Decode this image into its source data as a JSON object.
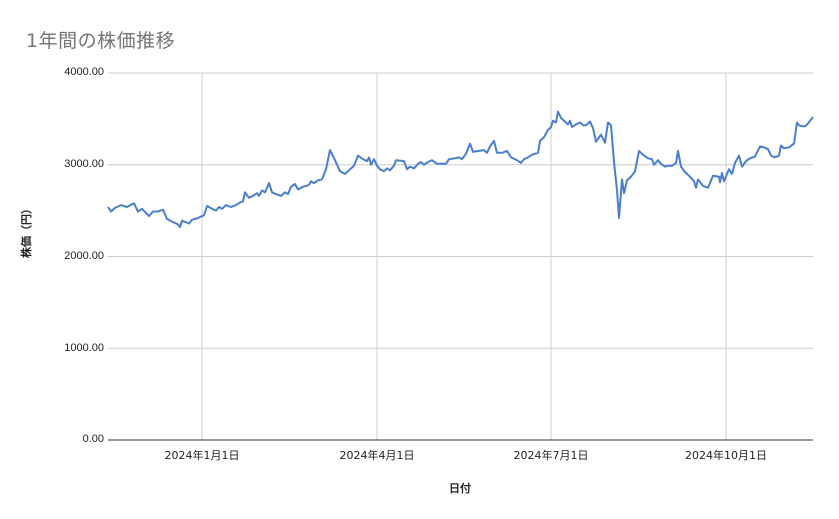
{
  "chart_data": {
    "type": "line",
    "title": "1年間の株価推移",
    "xlabel": "日付",
    "ylabel": "株価（円）",
    "ylim": [
      0,
      4000
    ],
    "y_ticks": [
      "4000.00",
      "3000.00",
      "2000.00",
      "1000.00",
      "0.00"
    ],
    "x_ticks": [
      "2024年1月1日",
      "2024年4月1日",
      "2024年7月1日",
      "2024年10月1日"
    ],
    "grid": true,
    "legend": "none",
    "line_color": "#4a7fd0",
    "series": [
      {
        "name": "株価",
        "x_range": [
          "2023年11月",
          "2024年11月"
        ],
        "points": [
          [
            108,
            2540
          ],
          [
            111,
            2490
          ],
          [
            115,
            2530
          ],
          [
            121,
            2560
          ],
          [
            127,
            2540
          ],
          [
            134,
            2580
          ],
          [
            138,
            2490
          ],
          [
            142,
            2520
          ],
          [
            149,
            2440
          ],
          [
            153,
            2490
          ],
          [
            158,
            2490
          ],
          [
            163,
            2510
          ],
          [
            165,
            2460
          ],
          [
            167,
            2410
          ],
          [
            172,
            2380
          ],
          [
            178,
            2350
          ],
          [
            180,
            2320
          ],
          [
            182,
            2390
          ],
          [
            189,
            2360
          ],
          [
            192,
            2400
          ],
          [
            198,
            2420
          ],
          [
            204,
            2450
          ],
          [
            207,
            2550
          ],
          [
            212,
            2520
          ],
          [
            216,
            2500
          ],
          [
            219,
            2540
          ],
          [
            222,
            2520
          ],
          [
            226,
            2560
          ],
          [
            231,
            2540
          ],
          [
            236,
            2560
          ],
          [
            240,
            2590
          ],
          [
            243,
            2600
          ],
          [
            245,
            2700
          ],
          [
            249,
            2640
          ],
          [
            253,
            2660
          ],
          [
            257,
            2690
          ],
          [
            259,
            2660
          ],
          [
            262,
            2720
          ],
          [
            265,
            2700
          ],
          [
            269,
            2800
          ],
          [
            272,
            2700
          ],
          [
            276,
            2680
          ],
          [
            281,
            2660
          ],
          [
            285,
            2700
          ],
          [
            288,
            2680
          ],
          [
            291,
            2760
          ],
          [
            295,
            2790
          ],
          [
            298,
            2730
          ],
          [
            303,
            2760
          ],
          [
            309,
            2780
          ],
          [
            311,
            2820
          ],
          [
            314,
            2800
          ],
          [
            318,
            2830
          ],
          [
            322,
            2840
          ],
          [
            326,
            2950
          ],
          [
            330,
            3160
          ],
          [
            335,
            3050
          ],
          [
            340,
            2930
          ],
          [
            345,
            2900
          ],
          [
            350,
            2950
          ],
          [
            354,
            2990
          ],
          [
            358,
            3100
          ],
          [
            363,
            3060
          ],
          [
            367,
            3040
          ],
          [
            369,
            3080
          ],
          [
            371,
            3000
          ],
          [
            374,
            3060
          ],
          [
            377,
            2990
          ],
          [
            380,
            2950
          ],
          [
            384,
            2930
          ],
          [
            387,
            2960
          ],
          [
            390,
            2940
          ],
          [
            394,
            2990
          ],
          [
            396,
            3050
          ],
          [
            404,
            3040
          ],
          [
            407,
            2950
          ],
          [
            410,
            2980
          ],
          [
            414,
            2960
          ],
          [
            418,
            3010
          ],
          [
            421,
            3030
          ],
          [
            424,
            3000
          ],
          [
            428,
            3030
          ],
          [
            432,
            3050
          ],
          [
            437,
            3010
          ],
          [
            446,
            3010
          ],
          [
            449,
            3060
          ],
          [
            455,
            3070
          ],
          [
            459,
            3080
          ],
          [
            462,
            3060
          ],
          [
            466,
            3120
          ],
          [
            470,
            3230
          ],
          [
            473,
            3140
          ],
          [
            478,
            3150
          ],
          [
            484,
            3160
          ],
          [
            487,
            3130
          ],
          [
            490,
            3200
          ],
          [
            494,
            3260
          ],
          [
            497,
            3130
          ],
          [
            502,
            3130
          ],
          [
            507,
            3150
          ],
          [
            511,
            3080
          ],
          [
            517,
            3050
          ],
          [
            521,
            3020
          ],
          [
            524,
            3060
          ],
          [
            528,
            3080
          ],
          [
            532,
            3110
          ],
          [
            538,
            3130
          ],
          [
            540,
            3260
          ],
          [
            544,
            3300
          ],
          [
            548,
            3380
          ],
          [
            551,
            3410
          ],
          [
            553,
            3480
          ],
          [
            556,
            3460
          ],
          [
            558,
            3580
          ],
          [
            561,
            3510
          ],
          [
            565,
            3470
          ],
          [
            568,
            3440
          ],
          [
            570,
            3480
          ],
          [
            572,
            3410
          ],
          [
            576,
            3440
          ],
          [
            580,
            3460
          ],
          [
            583,
            3430
          ],
          [
            586,
            3430
          ],
          [
            590,
            3470
          ],
          [
            593,
            3400
          ],
          [
            596,
            3250
          ],
          [
            601,
            3330
          ],
          [
            605,
            3240
          ],
          [
            608,
            3460
          ],
          [
            611,
            3430
          ],
          [
            614,
            3030
          ],
          [
            617,
            2720
          ],
          [
            619,
            2420
          ],
          [
            622,
            2840
          ],
          [
            624,
            2690
          ],
          [
            627,
            2830
          ],
          [
            631,
            2870
          ],
          [
            635,
            2930
          ],
          [
            639,
            3150
          ],
          [
            644,
            3100
          ],
          [
            648,
            3070
          ],
          [
            652,
            3060
          ],
          [
            654,
            3000
          ],
          [
            658,
            3050
          ],
          [
            661,
            3010
          ],
          [
            665,
            2980
          ],
          [
            669,
            2990
          ],
          [
            672,
            2990
          ],
          [
            676,
            3020
          ],
          [
            678,
            3150
          ],
          [
            681,
            2980
          ],
          [
            685,
            2920
          ],
          [
            690,
            2870
          ],
          [
            694,
            2820
          ],
          [
            696,
            2750
          ],
          [
            698,
            2840
          ],
          [
            703,
            2770
          ],
          [
            708,
            2750
          ],
          [
            713,
            2880
          ],
          [
            719,
            2870
          ],
          [
            720,
            2810
          ],
          [
            722,
            2910
          ],
          [
            724,
            2820
          ],
          [
            729,
            2950
          ],
          [
            732,
            2900
          ],
          [
            735,
            3020
          ],
          [
            739,
            3100
          ],
          [
            742,
            2980
          ],
          [
            746,
            3040
          ],
          [
            750,
            3070
          ],
          [
            755,
            3090
          ],
          [
            760,
            3200
          ],
          [
            764,
            3190
          ],
          [
            768,
            3170
          ],
          [
            771,
            3100
          ],
          [
            775,
            3080
          ],
          [
            779,
            3100
          ],
          [
            781,
            3210
          ],
          [
            784,
            3180
          ],
          [
            789,
            3190
          ],
          [
            794,
            3230
          ],
          [
            797,
            3460
          ],
          [
            799,
            3430
          ],
          [
            802,
            3420
          ],
          [
            805,
            3420
          ],
          [
            808,
            3450
          ],
          [
            813,
            3520
          ]
        ]
      }
    ]
  }
}
